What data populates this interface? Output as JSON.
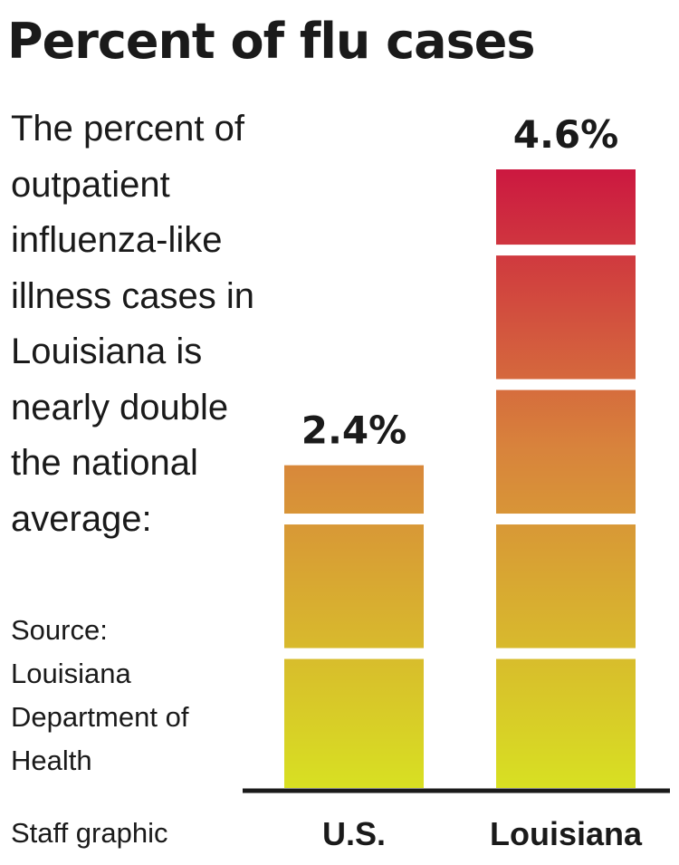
{
  "title": "Percent of flu cases",
  "description": "The percent of outpatient influenza-like illness cases in Louisiana is nearly double the national average:",
  "source": "Source: Louisiana Department of Health",
  "credit": "Staff graphic",
  "chart_data": {
    "type": "bar",
    "title": "Percent of flu cases",
    "categories": [
      "U.S.",
      "Louisiana"
    ],
    "values": [
      2.4,
      4.6
    ],
    "value_labels": [
      "2.4%",
      "4.6%"
    ],
    "unit": "%",
    "ylim": [
      0,
      4.6
    ],
    "segment_step": 1,
    "grid": false,
    "legend": "none",
    "gradient": {
      "bottom_color": "#d8e022",
      "middle_color": "#d8833c",
      "top_color": "#cc1840"
    }
  }
}
